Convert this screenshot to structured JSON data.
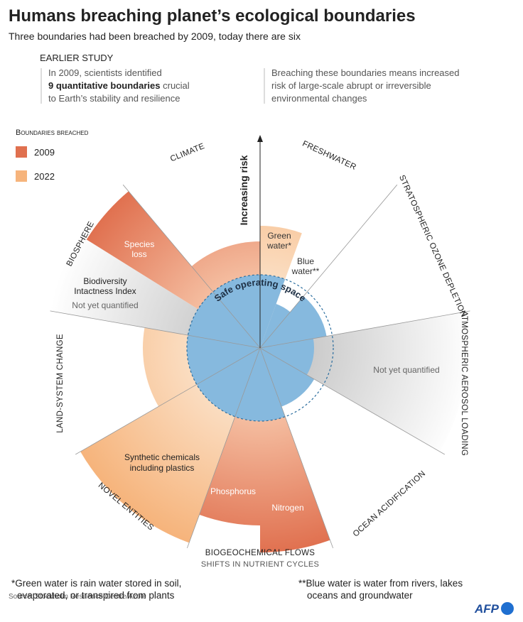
{
  "header": {
    "title": "Humans breaching planet’s ecological boundaries",
    "subtitle": "Three boundaries had been breached by 2009, today there are six"
  },
  "earlier_study": {
    "heading": "EARLIER STUDY",
    "line_1": "In 2009, scientists identified",
    "line_2_bold": "9 quantitative boundaries",
    "line_2_rest": "crucial",
    "line_3": "to Earth’s stability and resilience",
    "note_lines": [
      "Breaching these boundaries means increased",
      "risk of large-scale abrupt or irreversible",
      "environmental changes"
    ]
  },
  "legend": {
    "title": "Boundaries breached",
    "items": [
      {
        "label": "2009",
        "color": "#e0704f"
      },
      {
        "label": "2022",
        "color": "#f6b47c"
      }
    ]
  },
  "axis_label": "Increasing risk",
  "safe_label": "Safe operating space",
  "boundaries": {
    "climate": "CLIMATE",
    "freshwater": "FRESHWATER",
    "ozone": "STRATOSPHERIC OZONE DEPLETION",
    "aerosol": "ATMOSPHERIC AEROSOL LOADING",
    "ocean": "OCEAN ACIDIFICATION",
    "biogeochemical": "BIOGEOCHEMICAL FLOWS",
    "biogeochemical_sub": "SHIFTS IN NUTRIENT CYCLES",
    "novel": "NOVEL ENTITIES",
    "land": "LAND-SYSTEM CHANGE",
    "biosphere": "BIOSPHERE"
  },
  "wedge_labels": {
    "green_water": [
      "Green",
      "water*"
    ],
    "blue_water": [
      "Blue",
      "water**"
    ],
    "species_loss": [
      "Species",
      "loss"
    ],
    "biodiversity": [
      "Biodiversity",
      "Intactness Index"
    ],
    "biodiversity_note": "Not yet quantified",
    "aerosol_note": "Not yet quantified",
    "synthetic": [
      "Synthetic chemicals",
      "including plastics"
    ],
    "phosphorus": "Phosphorus",
    "nitrogen": "Nitrogen"
  },
  "footnotes": {
    "green": [
      "*Green water is rain water stored in soil,",
      "evaporated, or transpired from plants"
    ],
    "blue": [
      "**Blue water is water from rivers, lakes",
      "oceans and groundwater"
    ]
  },
  "source": "Source: Stockholm Resilience Centre/Azote",
  "logo": "AFP"
}
